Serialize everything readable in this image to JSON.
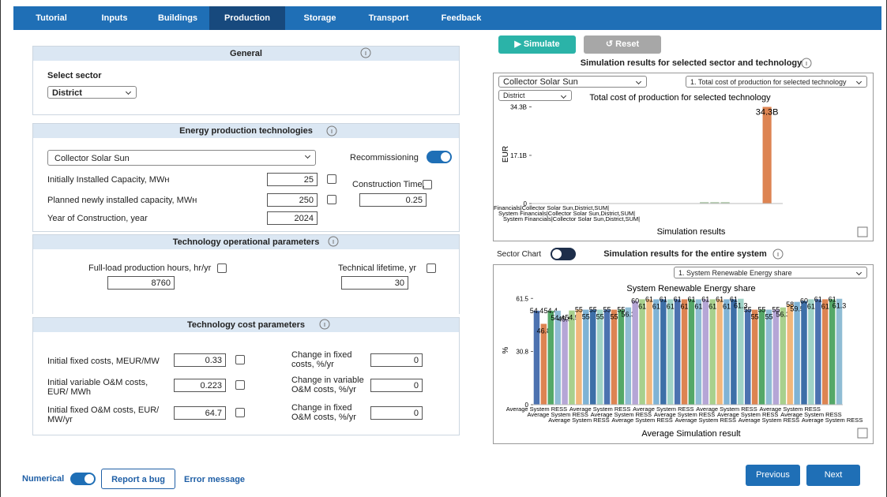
{
  "nav": {
    "tabs": [
      "Tutorial",
      "Inputs",
      "Buildings",
      "Production",
      "Storage",
      "Transport",
      "Feedback"
    ],
    "active": 3
  },
  "general": {
    "title": "General",
    "sector_label": "Select sector",
    "sector": "District"
  },
  "production": {
    "title": "Energy production technologies",
    "technology": "Collector Solar Sun",
    "recommissioning_label": "Recommissioning",
    "recommissioning": true,
    "installed_label": "Initially Installed Capacity, MWʜ",
    "installed": 25,
    "planned_label": "Planned newly installed capacity, MWʜ",
    "planned": 250,
    "year_label": "Year of Construction, year",
    "year": 2024,
    "construction_time_label": "Construction Time,",
    "construction_time": 0.25
  },
  "operational": {
    "title": "Technology operational parameters",
    "full_load_label": "Full-load production hours, hr/yr",
    "full_load": 8760,
    "lifetime_label": "Technical lifetime, yr",
    "lifetime": 30
  },
  "cost": {
    "title": "Technology cost parameters",
    "rows": [
      {
        "label": "Initial fixed costs, MEUR/MW",
        "value": 0.33,
        "change_label": "Change in fixed costs, %/yr",
        "change": 0
      },
      {
        "label": "Initial variable O&M costs, EUR/ MWh",
        "value": 0.223,
        "change_label": "Change in variable O&M costs, %/yr",
        "change": 0
      },
      {
        "label": "Initial fixed O&M costs, EUR/ MW/yr",
        "value": 64.7,
        "change_label": "Change in fixed O&M costs, %/yr",
        "change": 0
      }
    ]
  },
  "footer": {
    "numerical_label": "Numerical",
    "numerical": true,
    "report": "Report a bug",
    "error": "Error message",
    "previous": "Previous",
    "next": "Next"
  },
  "results": {
    "simulate": "▶ Simulate",
    "reset": "↺ Reset",
    "title": "Simulation results for selected sector and technology",
    "tech_select": "Collector Solar Sun",
    "metric_select": "1. Total cost of production for selected technology",
    "sector_select": "District",
    "sector_chart_label": "Sector Chart",
    "sector_chart": false,
    "system_title": "Simulation results for the entire system",
    "system_select": "1. System Renewable Energy share"
  },
  "chart_data": [
    {
      "type": "bar",
      "title": "Total cost of production for selected technology",
      "ylabel": "EUR",
      "xlabel": "Simulation results",
      "color": "#dd8452",
      "small_color": "#a9c6a4",
      "categories": [
        "Financials|Collector Solar Sun,District,SUM|",
        null,
        null,
        null,
        null,
        null,
        null,
        null,
        "System Financials|Collector Solar Sun,District,SUM|",
        null,
        null,
        null,
        null,
        null,
        null,
        null,
        "System Financials|Collector Solar Sun,District,SUM|",
        null,
        null,
        null,
        null,
        null,
        null,
        null
      ],
      "values": [
        0,
        0,
        0,
        0,
        0,
        0,
        0,
        0,
        0,
        0,
        0,
        0,
        0,
        0,
        0,
        0,
        500000000,
        500000000,
        500000000,
        0,
        0,
        0,
        34300000000,
        0
      ],
      "value_labels": [
        null,
        null,
        null,
        null,
        null,
        null,
        null,
        null,
        null,
        null,
        null,
        null,
        null,
        null,
        null,
        null,
        null,
        null,
        null,
        null,
        null,
        null,
        "34.3B",
        null
      ],
      "ylim": [
        0,
        35000000000
      ],
      "yticks": [
        0,
        {
          "value": 17100000000,
          "label": "17.1B"
        },
        {
          "value": 34300000000,
          "label": "34.3B"
        }
      ]
    },
    {
      "type": "bar",
      "title": "System Renewable Energy share",
      "ylabel": "%",
      "xlabel": "Average Simulation result",
      "colors": [
        "#4c72b0",
        "#dd8452",
        "#55a868",
        "#8fbcd4",
        "#b5a6d6",
        "#a8d08d",
        "#f2b77b",
        "#7fb3d5",
        "#3d6fa8",
        "#9fd3c7"
      ],
      "categories": [
        "Average System RESS",
        null,
        null,
        "Average System RESS",
        null,
        null,
        "Average System RESS",
        null,
        null,
        "Average System RESS",
        null,
        null,
        "Average System RESS",
        null,
        null,
        "Average System RESS",
        null,
        null,
        "Average System RESS",
        null,
        null,
        "Average System RESS",
        null,
        null,
        "Average System RESS",
        null,
        null,
        "Average System RESS",
        null,
        null,
        "Average System RESS",
        null,
        null,
        "Average System RESS",
        null,
        null,
        "Average System RESS",
        null,
        null,
        "Average System RESS",
        null,
        null,
        "Average System RESS",
        null
      ],
      "values": [
        54.4,
        46.8,
        54.4,
        54.4,
        49.5,
        54.5,
        55,
        55,
        55,
        55,
        55,
        55,
        55,
        56.3,
        60,
        61,
        61,
        61,
        61,
        61,
        61,
        61,
        61,
        61,
        61,
        61,
        61,
        61,
        61,
        61.3,
        55,
        55,
        55,
        55,
        55,
        56.3,
        58,
        59.5,
        60,
        61,
        61,
        61,
        61,
        61.3
      ],
      "ylim": [
        0,
        63
      ],
      "yticks": [
        0,
        30.8,
        61.5
      ]
    }
  ]
}
